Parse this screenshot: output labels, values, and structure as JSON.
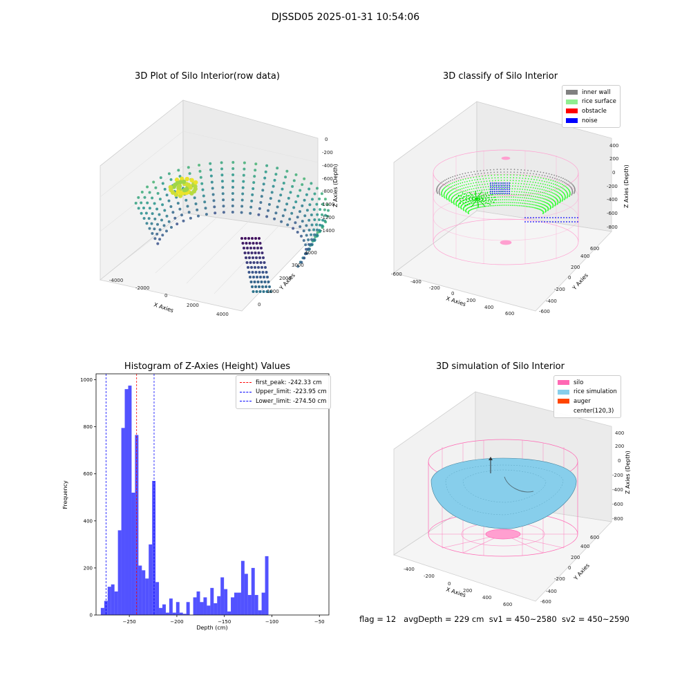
{
  "suptitle": "DJSSD05 2025-01-31 10:54:06",
  "footer": {
    "flag": "flag = 12",
    "avg_depth": "avgDepth = 229 cm",
    "sv1": "sv1 = 450~2580",
    "sv2": "sv2 = 450~2590"
  },
  "plots": {
    "raw": {
      "title": "3D Plot of Silo Interior(row data)",
      "xlabel": "X Axies",
      "ylabel": "Y Axies",
      "zlabel": "Z Axies (Depth)",
      "xticks": [
        "-4000",
        "-2000",
        "0",
        "2000",
        "4000"
      ],
      "yticks": [
        "0",
        "1000",
        "2000",
        "3000",
        "4000"
      ],
      "zticks": [
        "0",
        "-200",
        "-400",
        "-600",
        "-800",
        "-1000",
        "-1200",
        "-1400"
      ]
    },
    "classify": {
      "title": "3D classify of Silo Interior",
      "xlabel": "X Axies",
      "ylabel": "Y Axies",
      "zlabel": "Z Axies (Depth)",
      "xticks": [
        "-600",
        "-400",
        "-200",
        "0",
        "200",
        "400",
        "600"
      ],
      "yticks": [
        "-600",
        "-400",
        "-200",
        "0",
        "200",
        "400",
        "600"
      ],
      "zticks": [
        "400",
        "200",
        "0",
        "-200",
        "-400",
        "-600",
        "-800"
      ],
      "legend": [
        {
          "label": "inner wall",
          "color": "#808080"
        },
        {
          "label": "rice surface",
          "color": "#90ee90"
        },
        {
          "label": "obstacle",
          "color": "#ff0000"
        },
        {
          "label": "noise",
          "color": "#0000ff"
        }
      ]
    },
    "simulation": {
      "title": "3D simulation of Silo Interior",
      "xlabel": "X Axies",
      "ylabel": "Y Axies",
      "zlabel": "Z Axies (Depth)",
      "xticks": [
        "-400",
        "-200",
        "0",
        "200",
        "400",
        "600"
      ],
      "yticks": [
        "-600",
        "-400",
        "-200",
        "0",
        "200",
        "400",
        "600"
      ],
      "zticks": [
        "400",
        "200",
        "0",
        "-200",
        "-400",
        "-600",
        "-800"
      ],
      "legend": [
        {
          "label": "silo",
          "color": "#ff69b4"
        },
        {
          "label": "rice simulation",
          "color": "#87ceeb"
        },
        {
          "label": "auger",
          "color": "#ff4500"
        },
        {
          "label": "center(120,3)",
          "color": "#ffffff"
        }
      ]
    }
  },
  "chart_data": {
    "type": "bar",
    "title": "Histogram of Z-Axies (Height) Values",
    "xlabel": "Depth (cm)",
    "ylabel": "Frequency",
    "xlim": [
      -285,
      -40
    ],
    "ylim": [
      0,
      1025
    ],
    "xticks": [
      -250,
      -200,
      -150,
      -100,
      -50
    ],
    "yticks": [
      0,
      200,
      400,
      600,
      800,
      1000
    ],
    "bar_color": "#0000ff",
    "bin_start": -280,
    "bin_width": 3.6,
    "values": [
      30,
      60,
      120,
      130,
      100,
      360,
      795,
      960,
      975,
      520,
      765,
      210,
      190,
      155,
      300,
      570,
      140,
      30,
      45,
      10,
      70,
      10,
      55,
      10,
      5,
      55,
      0,
      75,
      100,
      55,
      75,
      40,
      115,
      50,
      80,
      160,
      110,
      15,
      75,
      95,
      95,
      230,
      175,
      85,
      200,
      85,
      20,
      95,
      250
    ],
    "vlines": [
      {
        "label": "first_peak: -242.33 cm",
        "value": -242.33,
        "color": "#ff0000"
      },
      {
        "label": "Upper_limit: -223.95 cm",
        "value": -223.95,
        "color": "#0000ff"
      },
      {
        "label": "Lower_limit: -274.50 cm",
        "value": -274.5,
        "color": "#0000ff"
      }
    ]
  }
}
